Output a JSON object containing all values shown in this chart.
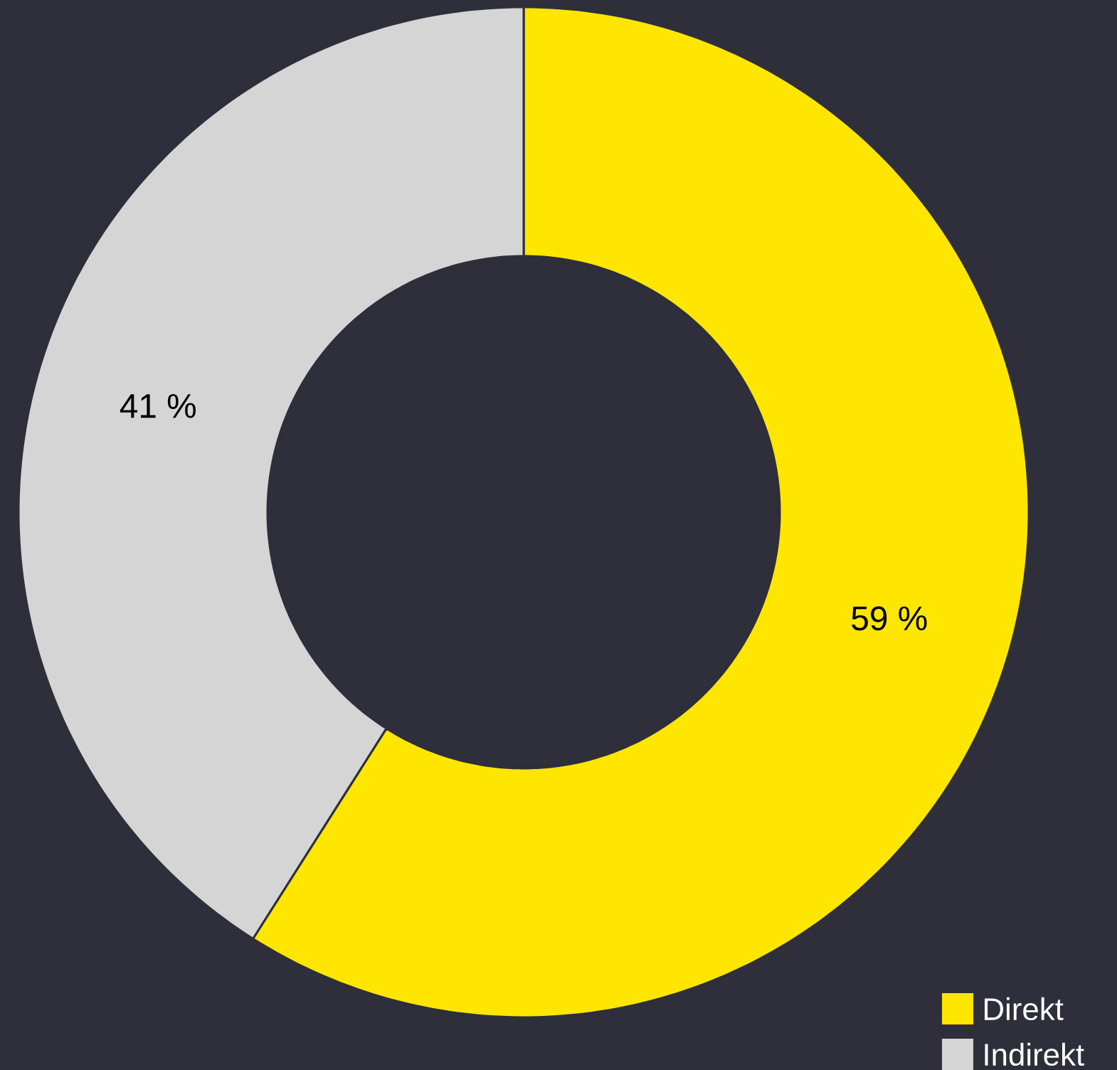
{
  "chart_data": {
    "type": "donut",
    "categories": [
      "Direkt",
      "Indirekt"
    ],
    "values": [
      59,
      41
    ],
    "colors": [
      "#ffe600",
      "#d5d5d5"
    ],
    "value_labels": [
      "59 %",
      "41 %"
    ],
    "legend": "bottom right"
  }
}
